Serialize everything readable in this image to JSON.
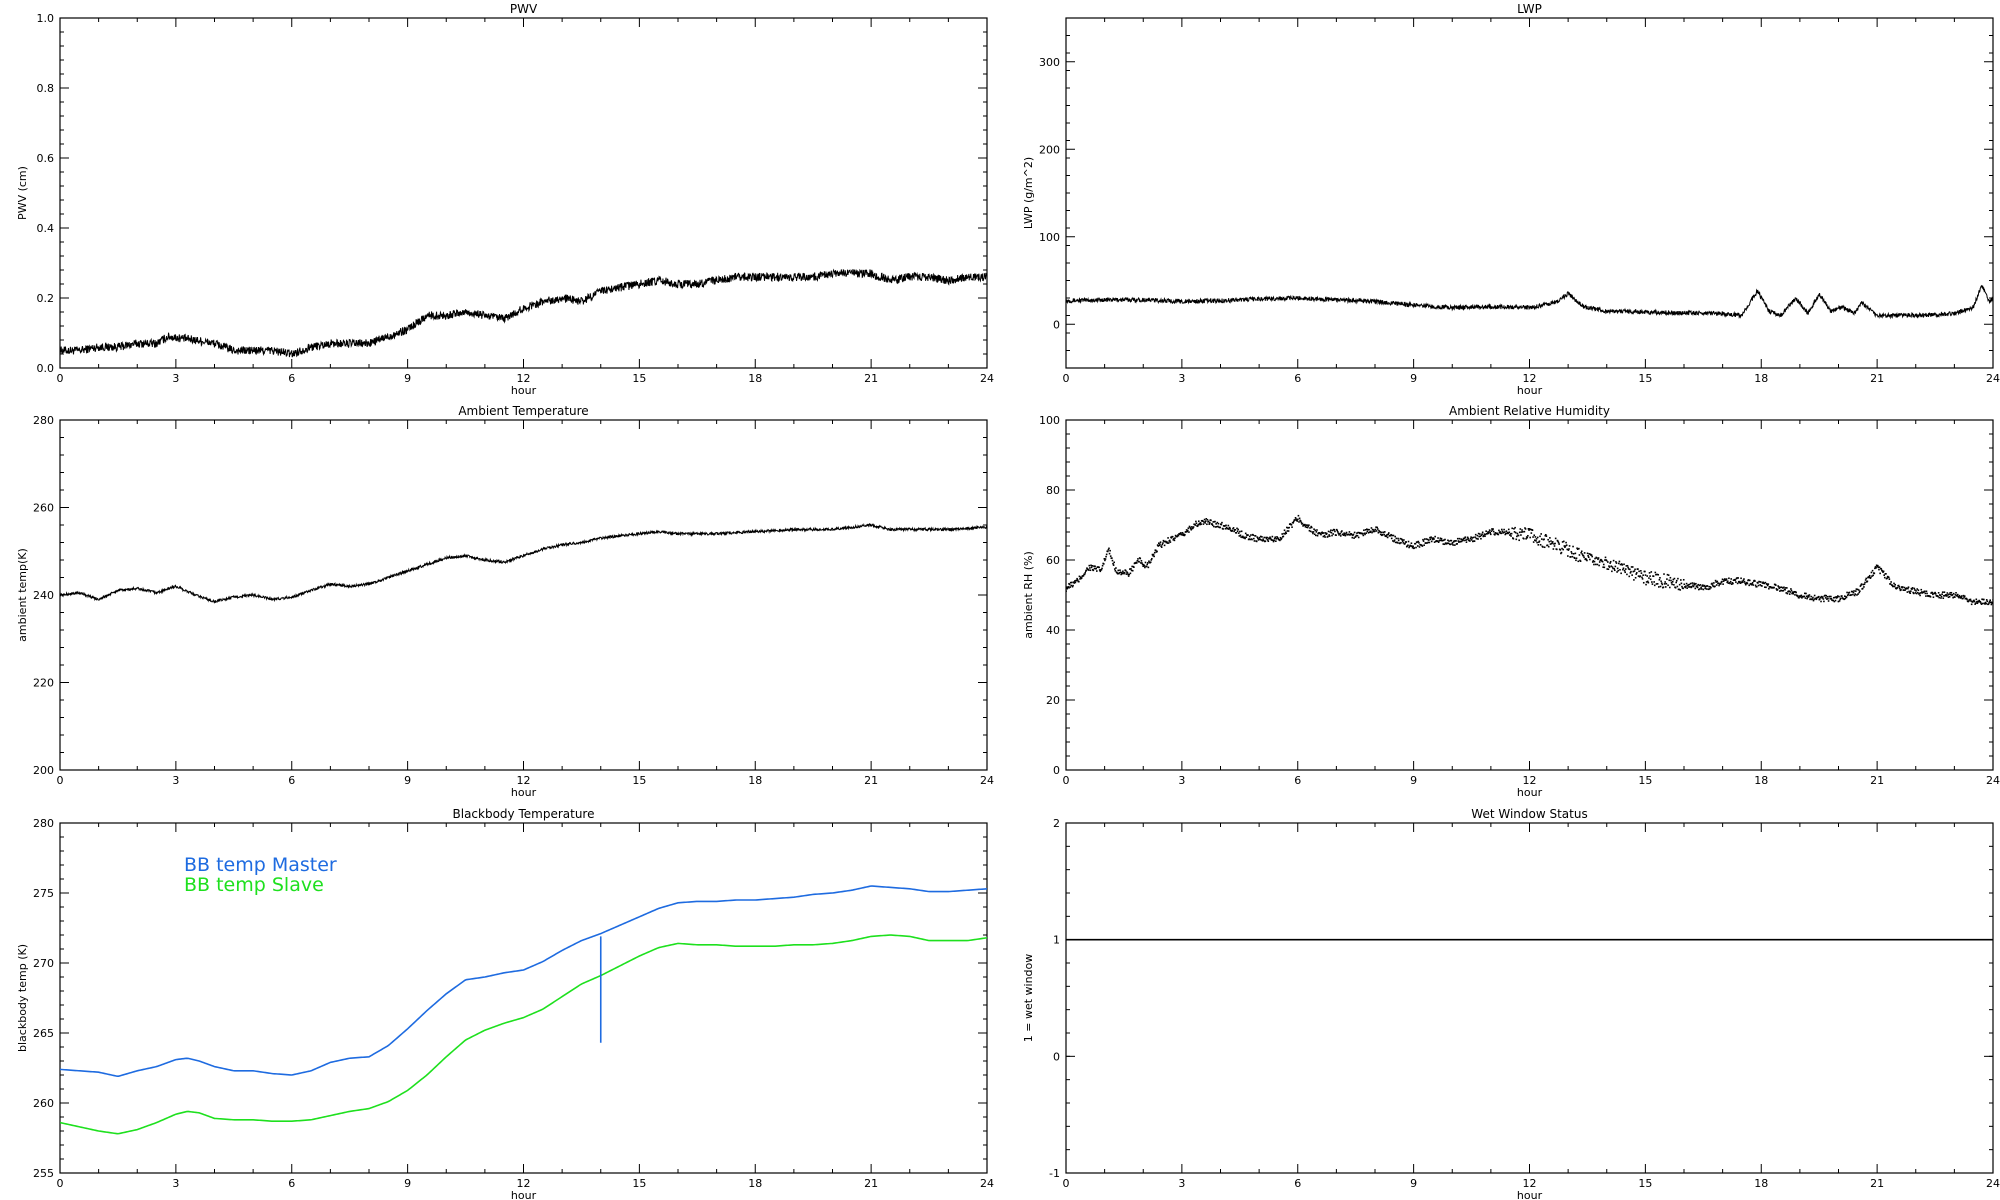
{
  "chart_data": [
    {
      "id": "pwv",
      "type": "line",
      "title": "PWV",
      "xlabel": "hour",
      "ylabel": "PWV (cm)",
      "xlim": [
        0,
        24
      ],
      "ylim": [
        0.0,
        1.0
      ],
      "x_ticks": [
        "0",
        "3",
        "6",
        "9",
        "12",
        "15",
        "18",
        "21",
        "24"
      ],
      "y_ticks": [
        "0.0",
        "0.2",
        "0.4",
        "0.6",
        "0.8",
        "1.0"
      ],
      "grid": false,
      "noise": 0.012,
      "color": "#000000",
      "series": [
        {
          "x": [
            0,
            0.5,
            1,
            1.5,
            2,
            2.5,
            2.8,
            3.5,
            4,
            4.5,
            5,
            5.5,
            6,
            6.5,
            7,
            7.5,
            8,
            8.5,
            9,
            9.5,
            10,
            10.5,
            11,
            11.5,
            12,
            12.5,
            13,
            13.5,
            14,
            14.5,
            15,
            15.5,
            16,
            16.5,
            17,
            17.5,
            18,
            18.5,
            19,
            19.5,
            20,
            20.5,
            21,
            21.5,
            22,
            22.5,
            23,
            23.5,
            24
          ],
          "y": [
            0.05,
            0.05,
            0.06,
            0.06,
            0.07,
            0.07,
            0.09,
            0.08,
            0.07,
            0.05,
            0.05,
            0.05,
            0.04,
            0.06,
            0.07,
            0.07,
            0.07,
            0.09,
            0.11,
            0.15,
            0.15,
            0.16,
            0.15,
            0.14,
            0.17,
            0.19,
            0.2,
            0.19,
            0.22,
            0.23,
            0.24,
            0.25,
            0.24,
            0.24,
            0.25,
            0.26,
            0.26,
            0.26,
            0.26,
            0.26,
            0.27,
            0.27,
            0.27,
            0.25,
            0.26,
            0.26,
            0.25,
            0.26,
            0.26
          ]
        }
      ]
    },
    {
      "id": "lwp",
      "type": "line",
      "title": "LWP",
      "xlabel": "hour",
      "ylabel": "LWP (g/m^2)",
      "xlim": [
        0,
        24
      ],
      "ylim": [
        -50,
        350
      ],
      "x_ticks": [
        "0",
        "3",
        "6",
        "9",
        "12",
        "15",
        "18",
        "21",
        "24"
      ],
      "y_ticks": [
        "0",
        "100",
        "200",
        "300"
      ],
      "y_tick_values": [
        0,
        100,
        200,
        300
      ],
      "grid": false,
      "noise": 2.5,
      "color": "#000000",
      "series": [
        {
          "x": [
            0,
            1,
            2,
            3,
            4,
            5,
            6,
            7,
            8,
            9,
            10,
            11,
            12,
            12.7,
            13,
            13.4,
            14,
            15,
            16,
            17,
            17.5,
            17.9,
            18.2,
            18.5,
            18.9,
            19.2,
            19.5,
            19.8,
            20.1,
            20.4,
            20.6,
            21,
            22,
            23,
            23.5,
            23.7,
            23.9,
            24
          ],
          "y": [
            27,
            28,
            28,
            26,
            27,
            29,
            30,
            28,
            26,
            22,
            19,
            20,
            19,
            25,
            35,
            20,
            15,
            14,
            13,
            12,
            10,
            38,
            15,
            10,
            30,
            12,
            35,
            15,
            20,
            12,
            25,
            10,
            10,
            12,
            20,
            45,
            25,
            30
          ]
        }
      ]
    },
    {
      "id": "ambient_temp",
      "type": "line",
      "title": "Ambient Temperature",
      "xlabel": "hour",
      "ylabel": "ambient temp(K)",
      "xlim": [
        0,
        24
      ],
      "ylim": [
        200,
        280
      ],
      "x_ticks": [
        "0",
        "3",
        "6",
        "9",
        "12",
        "15",
        "18",
        "21",
        "24"
      ],
      "y_ticks": [
        "200",
        "220",
        "240",
        "260",
        "280"
      ],
      "grid": false,
      "noise": 0.3,
      "color": "#000000",
      "series": [
        {
          "x": [
            0,
            0.5,
            1,
            1.5,
            2,
            2.5,
            3,
            3.5,
            4,
            4.5,
            5,
            5.5,
            6,
            6.5,
            7,
            7.5,
            8,
            8.5,
            9,
            9.5,
            10,
            10.5,
            11,
            11.5,
            12,
            12.5,
            13,
            13.5,
            14,
            14.5,
            15,
            15.5,
            16,
            17,
            18,
            19,
            20,
            20.5,
            21,
            21.5,
            22,
            23,
            24
          ],
          "y": [
            240,
            240.5,
            239,
            241,
            241.5,
            240.5,
            242,
            240,
            238.5,
            239.5,
            240,
            239,
            239.5,
            241,
            242.5,
            242,
            242.5,
            244,
            245.5,
            247,
            248.5,
            249,
            248,
            247.5,
            249,
            250.5,
            251.5,
            252,
            253,
            253.5,
            254,
            254.5,
            254,
            254,
            254.5,
            255,
            255,
            255.5,
            256,
            255,
            255,
            255,
            255.5
          ]
        }
      ]
    },
    {
      "id": "ambient_rh",
      "type": "scatter",
      "title": "Ambient Relative Humidity",
      "xlabel": "hour",
      "ylabel": "ambient RH (%)",
      "xlim": [
        0,
        24
      ],
      "ylim": [
        0,
        100
      ],
      "x_ticks": [
        "0",
        "3",
        "6",
        "9",
        "12",
        "15",
        "18",
        "21",
        "24"
      ],
      "y_ticks": [
        "0",
        "20",
        "40",
        "60",
        "80",
        "100"
      ],
      "grid": false,
      "noise": 0.9,
      "color": "#000000",
      "series": [
        {
          "x": [
            0,
            0.3,
            0.6,
            0.9,
            1.1,
            1.3,
            1.6,
            1.9,
            2.1,
            2.4,
            2.7,
            3,
            3.3,
            3.6,
            4,
            4.3,
            4.6,
            5,
            5.5,
            6,
            6.3,
            6.6,
            7,
            7.5,
            8,
            8.5,
            9,
            9.5,
            10,
            10.5,
            11,
            11.5,
            12,
            12.5,
            13,
            13.5,
            14,
            14.5,
            15,
            15.5,
            16,
            16.5,
            17,
            17.5,
            18,
            18.5,
            19,
            19.5,
            20,
            20.5,
            21,
            21.5,
            22,
            22.5,
            23,
            23.5,
            24
          ],
          "y": [
            52,
            54,
            58,
            57,
            63,
            57,
            56,
            60,
            58,
            64,
            66,
            67,
            70,
            71,
            70,
            69,
            67,
            66,
            66,
            72,
            69,
            67,
            68,
            67,
            69,
            66,
            64,
            66,
            65,
            66,
            68,
            68,
            67,
            65,
            63,
            60,
            59,
            57,
            55,
            54,
            53,
            52,
            54,
            54,
            53,
            52,
            50,
            49,
            49,
            51,
            58,
            52,
            51,
            50,
            50,
            48,
            48
          ]
        }
      ]
    },
    {
      "id": "blackbody",
      "type": "line",
      "title": "Blackbody Temperature",
      "xlabel": "hour",
      "ylabel": "blackbody temp (K)",
      "xlim": [
        0,
        24
      ],
      "ylim": [
        255,
        280
      ],
      "x_ticks": [
        "0",
        "3",
        "6",
        "9",
        "12",
        "15",
        "18",
        "21",
        "24"
      ],
      "y_ticks": [
        "255",
        "260",
        "265",
        "270",
        "275",
        "280"
      ],
      "grid": false,
      "noise": 0,
      "legend_position": "upper-left",
      "series": [
        {
          "name": "BB temp Master",
          "color": "#1e6be0",
          "x": [
            0,
            0.5,
            1,
            1.5,
            2,
            2.5,
            3,
            3.3,
            3.6,
            4,
            4.5,
            5,
            5.5,
            6,
            6.5,
            7,
            7.5,
            8,
            8.5,
            9,
            9.5,
            10,
            10.5,
            11,
            11.5,
            12,
            12.5,
            13,
            13.5,
            14,
            14.5,
            15,
            15.5,
            16,
            16.5,
            17,
            17.5,
            18,
            18.5,
            19,
            19.5,
            20,
            20.5,
            21,
            21.5,
            22,
            22.5,
            23,
            23.5,
            24
          ],
          "y": [
            262.4,
            262.3,
            262.2,
            261.9,
            262.3,
            262.6,
            263.1,
            263.2,
            263.0,
            262.6,
            262.3,
            262.3,
            262.1,
            262.0,
            262.3,
            262.9,
            263.2,
            263.3,
            264.1,
            265.3,
            266.6,
            267.8,
            268.8,
            269.0,
            269.3,
            269.5,
            270.1,
            270.9,
            271.6,
            272.1,
            272.7,
            273.3,
            273.9,
            274.3,
            274.4,
            274.4,
            274.5,
            274.5,
            274.6,
            274.7,
            274.9,
            275.0,
            275.2,
            275.5,
            275.4,
            275.3,
            275.1,
            275.1,
            275.2,
            275.3
          ]
        },
        {
          "name": "BB temp Slave",
          "color": "#1ee01e",
          "x": [
            0,
            0.5,
            1,
            1.5,
            2,
            2.5,
            3,
            3.3,
            3.6,
            4,
            4.5,
            5,
            5.5,
            6,
            6.5,
            7,
            7.5,
            8,
            8.5,
            9,
            9.5,
            10,
            10.5,
            11,
            11.5,
            12,
            12.5,
            13,
            13.5,
            14,
            14.5,
            15,
            15.5,
            16,
            16.5,
            17,
            17.5,
            18,
            18.5,
            19,
            19.5,
            20,
            20.5,
            21,
            21.5,
            22,
            22.5,
            23,
            23.5,
            24
          ],
          "y": [
            258.6,
            258.3,
            258.0,
            257.8,
            258.1,
            258.6,
            259.2,
            259.4,
            259.3,
            258.9,
            258.8,
            258.8,
            258.7,
            258.7,
            258.8,
            259.1,
            259.4,
            259.6,
            260.1,
            260.9,
            262.0,
            263.3,
            264.5,
            265.2,
            265.7,
            266.1,
            266.7,
            267.6,
            268.5,
            269.1,
            269.8,
            270.5,
            271.1,
            271.4,
            271.3,
            271.3,
            271.2,
            271.2,
            271.2,
            271.3,
            271.3,
            271.4,
            271.6,
            271.9,
            272.0,
            271.9,
            271.6,
            271.6,
            271.6,
            271.8
          ]
        }
      ],
      "annotation": {
        "type": "vertical_spike",
        "x": 14,
        "y_from": 264.3,
        "y_to": 271.9,
        "color": "#1e6be0"
      }
    },
    {
      "id": "wet_window",
      "type": "line",
      "title": "Wet Window Status",
      "xlabel": "hour",
      "ylabel": "1 = wet window",
      "xlim": [
        0,
        24
      ],
      "ylim": [
        -1,
        2
      ],
      "x_ticks": [
        "0",
        "3",
        "6",
        "9",
        "12",
        "15",
        "18",
        "21",
        "24"
      ],
      "y_ticks": [
        "-1",
        "0",
        "1",
        "2"
      ],
      "grid": false,
      "noise": 0,
      "color": "#000000",
      "series": [
        {
          "x": [
            0,
            24
          ],
          "y": [
            1,
            1
          ]
        }
      ]
    }
  ]
}
